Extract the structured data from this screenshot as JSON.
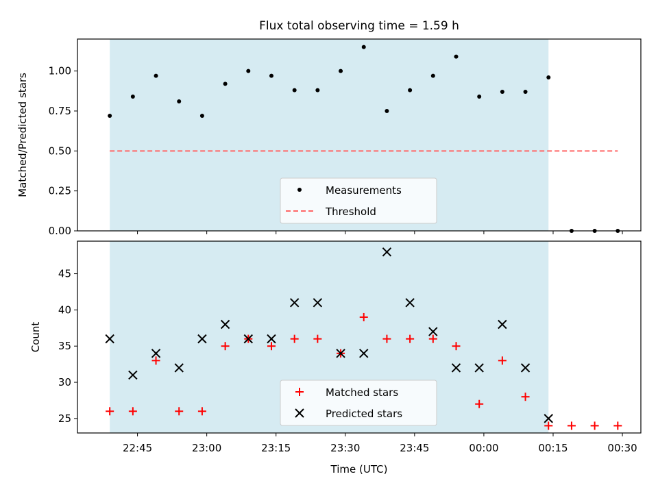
{
  "chart_data": [
    {
      "type": "scatter",
      "title": "Flux total observing time = 1.59 h",
      "xlabel": "",
      "ylabel": "Matched/Predicted stars",
      "ylim": [
        0,
        1.2
      ],
      "yticks": [
        "0.00",
        "0.25",
        "0.50",
        "0.75",
        "1.00"
      ],
      "ytick_values": [
        0,
        0.25,
        0.5,
        0.75,
        1.0
      ],
      "xlim": [
        "22:32",
        "00:34"
      ],
      "shaded_region": {
        "start": "22:39",
        "end": "00:14",
        "color": "#add8e6"
      },
      "threshold": {
        "value": 0.5,
        "start": "22:39",
        "end": "00:29",
        "color": "#ff6666"
      },
      "series": [
        {
          "name": "Measurements",
          "marker": "dot",
          "color": "#000000",
          "x": [
            "22:39",
            "22:44",
            "22:49",
            "22:54",
            "22:59",
            "23:04",
            "23:09",
            "23:14",
            "23:19",
            "23:24",
            "23:29",
            "23:34",
            "23:39",
            "23:44",
            "23:49",
            "23:54",
            "23:59",
            "00:04",
            "00:09",
            "00:14",
            "00:19",
            "00:24",
            "00:29"
          ],
          "y": [
            0.72,
            0.84,
            0.97,
            0.81,
            0.72,
            0.92,
            1.0,
            0.97,
            0.88,
            0.88,
            1.0,
            1.15,
            0.75,
            0.88,
            0.97,
            1.09,
            0.84,
            0.87,
            0.87,
            0.96,
            0.0,
            0.0,
            0.0
          ]
        }
      ],
      "legend": {
        "position": "lower center",
        "entries": [
          "Measurements",
          "Threshold"
        ]
      }
    },
    {
      "type": "scatter",
      "title": "",
      "xlabel": "Time (UTC)",
      "ylabel": "Count",
      "ylim": [
        23,
        49.5
      ],
      "yticks": [
        "25",
        "30",
        "35",
        "40",
        "45"
      ],
      "ytick_values": [
        25,
        30,
        35,
        40,
        45
      ],
      "xticks": [
        "22:45",
        "23:00",
        "23:15",
        "23:30",
        "23:45",
        "00:00",
        "00:15",
        "00:30"
      ],
      "xlim": [
        "22:32",
        "00:34"
      ],
      "shaded_region": {
        "start": "22:39",
        "end": "00:14",
        "color": "#add8e6"
      },
      "series": [
        {
          "name": "Matched stars",
          "marker": "plus",
          "color": "#ff0000",
          "x": [
            "22:39",
            "22:44",
            "22:49",
            "22:54",
            "22:59",
            "23:04",
            "23:09",
            "23:14",
            "23:19",
            "23:24",
            "23:29",
            "23:34",
            "23:39",
            "23:44",
            "23:49",
            "23:54",
            "23:59",
            "00:04",
            "00:09",
            "00:14",
            "00:19",
            "00:24",
            "00:29"
          ],
          "y": [
            26,
            26,
            33,
            26,
            26,
            35,
            36,
            35,
            36,
            36,
            34,
            39,
            36,
            36,
            36,
            35,
            27,
            33,
            28,
            24,
            24,
            24,
            24
          ]
        },
        {
          "name": "Predicted stars",
          "marker": "x",
          "color": "#000000",
          "x": [
            "22:39",
            "22:44",
            "22:49",
            "22:54",
            "22:59",
            "23:04",
            "23:09",
            "23:14",
            "23:19",
            "23:24",
            "23:29",
            "23:34",
            "23:39",
            "23:44",
            "23:49",
            "23:54",
            "23:59",
            "00:04",
            "00:09",
            "00:14"
          ],
          "y": [
            36,
            31,
            34,
            32,
            36,
            38,
            36,
            36,
            41,
            41,
            34,
            34,
            48,
            41,
            37,
            32,
            32,
            38,
            32,
            25
          ]
        }
      ],
      "legend": {
        "position": "lower center",
        "entries": [
          "Matched stars",
          "Predicted stars"
        ]
      }
    }
  ]
}
